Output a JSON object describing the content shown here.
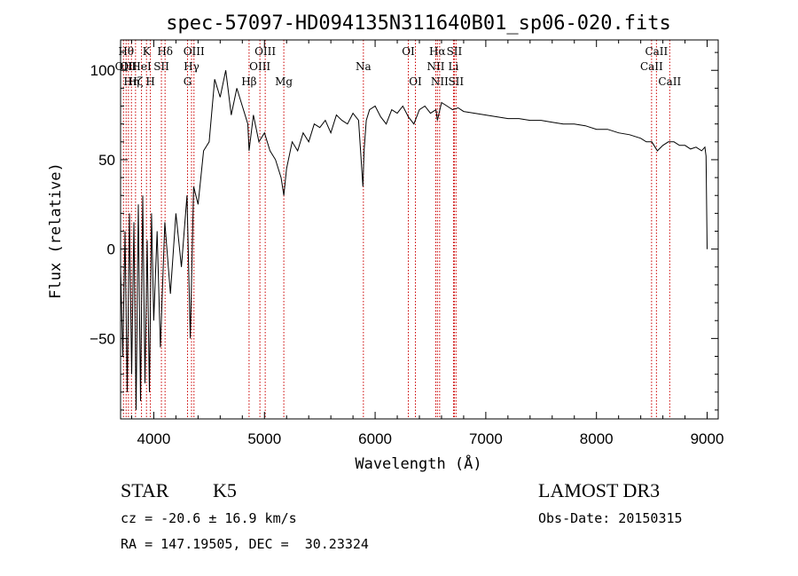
{
  "chart_data": {
    "type": "line",
    "title": "spec-57097-HD094135N311640B01_sp06-020.fits",
    "xlabel": "Wavelength (Å)",
    "ylabel": "Flux (relative)",
    "xlim": [
      3700,
      9100
    ],
    "ylim": [
      -95,
      117
    ],
    "xticks": [
      4000,
      5000,
      6000,
      7000,
      8000,
      9000
    ],
    "yticks": [
      -50,
      0,
      50,
      100
    ],
    "line_color": "#000000",
    "marker_color": "#cc0000",
    "series": [
      {
        "x": [
          3700,
          3720,
          3740,
          3760,
          3780,
          3800,
          3820,
          3840,
          3860,
          3880,
          3900,
          3920,
          3940,
          3960,
          3980,
          4000,
          4030,
          4060,
          4100,
          4150,
          4200,
          4250,
          4300,
          4330,
          4360,
          4400,
          4450,
          4500,
          4550,
          4600,
          4650,
          4700,
          4750,
          4800,
          4850,
          4861,
          4900,
          4950,
          5000,
          5050,
          5100,
          5150,
          5175,
          5200,
          5250,
          5300,
          5350,
          5400,
          5450,
          5500,
          5550,
          5600,
          5650,
          5700,
          5750,
          5800,
          5850,
          5890,
          5900,
          5920,
          5950,
          6000,
          6050,
          6100,
          6150,
          6200,
          6250,
          6300,
          6350,
          6400,
          6450,
          6500,
          6550,
          6563,
          6600,
          6650,
          6700,
          6750,
          6800,
          6900,
          7000,
          7100,
          7200,
          7300,
          7400,
          7500,
          7600,
          7700,
          7800,
          7900,
          8000,
          8100,
          8200,
          8300,
          8400,
          8450,
          8500,
          8550,
          8600,
          8650,
          8700,
          8750,
          8800,
          8850,
          8900,
          8950,
          8980,
          8990,
          9000
        ],
        "y": [
          -10,
          -60,
          10,
          -80,
          20,
          -70,
          15,
          -90,
          25,
          -85,
          30,
          -75,
          5,
          -80,
          20,
          -40,
          10,
          -55,
          15,
          -25,
          20,
          -10,
          30,
          -50,
          35,
          25,
          55,
          60,
          95,
          85,
          100,
          75,
          90,
          80,
          70,
          55,
          75,
          60,
          65,
          55,
          50,
          40,
          30,
          45,
          60,
          55,
          65,
          60,
          70,
          68,
          72,
          65,
          75,
          72,
          70,
          76,
          72,
          35,
          55,
          72,
          78,
          80,
          74,
          70,
          78,
          76,
          80,
          74,
          70,
          78,
          80,
          76,
          78,
          72,
          82,
          80,
          78,
          79,
          77,
          76,
          75,
          74,
          73,
          73,
          72,
          72,
          71,
          70,
          70,
          69,
          67,
          67,
          65,
          64,
          62,
          60,
          60,
          55,
          58,
          60,
          60,
          58,
          58,
          56,
          57,
          55,
          57,
          52,
          0
        ]
      }
    ],
    "line_markers": [
      {
        "x": 3726,
        "label": "OII",
        "row": 2
      },
      {
        "x": 3750,
        "label": "Hθ",
        "row": 1
      },
      {
        "x": 3771,
        "label": "OII",
        "row": 2
      },
      {
        "x": 3798,
        "label": "Hη",
        "row": 3
      },
      {
        "x": 3835,
        "label": "Hζ",
        "row": 3
      },
      {
        "x": 3889,
        "label": "HeI",
        "row": 2
      },
      {
        "x": 3934,
        "label": "K",
        "row": 1
      },
      {
        "x": 3969,
        "label": "H",
        "row": 3
      },
      {
        "x": 4069,
        "label": "SII",
        "row": 2
      },
      {
        "x": 4102,
        "label": "Hδ",
        "row": 1
      },
      {
        "x": 4305,
        "label": "G",
        "row": 3
      },
      {
        "x": 4341,
        "label": "Hγ",
        "row": 2
      },
      {
        "x": 4363,
        "label": "OIII",
        "row": 1
      },
      {
        "x": 4861,
        "label": "Hβ",
        "row": 3
      },
      {
        "x": 4959,
        "label": "OIII",
        "row": 2
      },
      {
        "x": 5007,
        "label": "OIII",
        "row": 1
      },
      {
        "x": 5175,
        "label": "Mg",
        "row": 3
      },
      {
        "x": 5894,
        "label": "Na",
        "row": 2
      },
      {
        "x": 6300,
        "label": "OI",
        "row": 1
      },
      {
        "x": 6364,
        "label": "OI",
        "row": 3
      },
      {
        "x": 6548,
        "label": "NII",
        "row": 2
      },
      {
        "x": 6563,
        "label": "Hα",
        "row": 1
      },
      {
        "x": 6583,
        "label": "NII",
        "row": 3
      },
      {
        "x": 6708,
        "label": "Li",
        "row": 2
      },
      {
        "x": 6716,
        "label": "SII",
        "row": 1
      },
      {
        "x": 6731,
        "label": "SII",
        "row": 3
      },
      {
        "x": 8498,
        "label": "CaII",
        "row": 2
      },
      {
        "x": 8542,
        "label": "CaII",
        "row": 1
      },
      {
        "x": 8662,
        "label": "CaII",
        "row": 3
      }
    ]
  },
  "info": {
    "object_class": "STAR",
    "subclass": "K5",
    "survey": "LAMOST DR3",
    "redshift_text": "cz = -20.6 ± 16.9 km/s",
    "obs_date": "Obs-Date: 20150315",
    "coords": "RA = 147.19505, DEC =  30.23324"
  }
}
